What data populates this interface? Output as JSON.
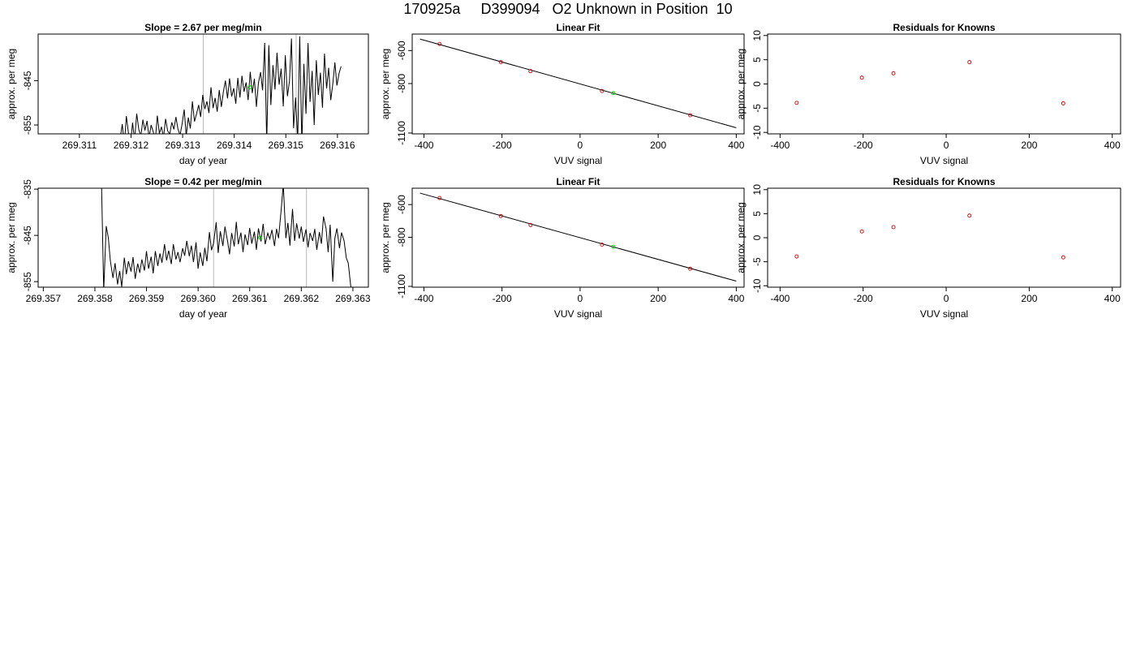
{
  "figure_title": "170925a     D399094   O2 Unknown in Position  10",
  "colors": {
    "line": "#000000",
    "known_point": "#cc0000",
    "unknown_point": "#00dd00",
    "marker_line": "#bbbbbb",
    "frame": "#000000"
  },
  "chart_data": [
    {
      "type": "line",
      "title": "Slope =  2.67  per meg/min",
      "xlabel": "day of year",
      "ylabel": "approx. per meg",
      "xlim": [
        269.3102,
        269.3166
      ],
      "ylim": [
        -857,
        -834.5
      ],
      "xticks": [
        269.311,
        269.312,
        269.313,
        269.314,
        269.315,
        269.316
      ],
      "xtick_labels": [
        "269.311",
        "269.312",
        "269.313",
        "269.314",
        "269.315",
        "269.316"
      ],
      "yticks": [
        -855,
        -845
      ],
      "ytick_labels": [
        "-855",
        "-845"
      ],
      "vertical_markers": [
        269.3134,
        269.3152
      ],
      "unknown_point": {
        "x": 269.3143,
        "y": -846.5
      },
      "series": [
        {
          "x": [
            269.31179,
            269.31183,
            269.31187,
            269.31191,
            269.31195,
            269.31199,
            269.31203,
            269.31207,
            269.31211,
            269.31215,
            269.31219,
            269.31223,
            269.31227,
            269.31231,
            269.31235,
            269.31239,
            269.31243,
            269.31247,
            269.31251,
            269.31255,
            269.31259,
            269.31263,
            269.31267,
            269.31271,
            269.31275,
            269.31279,
            269.31283,
            269.31287,
            269.31291,
            269.31295,
            269.31299,
            269.31303,
            269.31307,
            269.31311,
            269.31315,
            269.31319,
            269.31323,
            269.31327,
            269.31331,
            269.31335,
            269.31339,
            269.31343,
            269.31347,
            269.31351,
            269.31355,
            269.31359,
            269.31363,
            269.31367,
            269.31371,
            269.31375,
            269.31379,
            269.31383,
            269.31387,
            269.31391,
            269.31395,
            269.31399,
            269.31403,
            269.31407,
            269.31411,
            269.31415,
            269.31419,
            269.31423,
            269.31427,
            269.31431,
            269.31435,
            269.31439,
            269.31443,
            269.31447,
            269.31451,
            269.31455,
            269.31459,
            269.31463,
            269.31467,
            269.31471,
            269.31475,
            269.31479,
            269.31483,
            269.31487,
            269.31491,
            269.31495,
            269.31499,
            269.31503,
            269.31507,
            269.31511,
            269.31515,
            269.31519,
            269.31523,
            269.31527,
            269.31531,
            269.31535,
            269.31539,
            269.31543,
            269.31547,
            269.31551,
            269.31555,
            269.31559,
            269.31563,
            269.31567,
            269.31571,
            269.31575,
            269.31579,
            269.31583,
            269.31587,
            269.31591,
            269.31595,
            269.31599,
            269.31603,
            269.31607
          ],
          "y": [
            -858.0,
            -854.8,
            -859.5,
            -853.0,
            -856.8,
            -859.2,
            -854.5,
            -858.5,
            -852.4,
            -856.0,
            -857.5,
            -853.8,
            -856.2,
            -854.1,
            -857.8,
            -855.0,
            -856.5,
            -858.4,
            -852.9,
            -856.9,
            -855.4,
            -857.8,
            -853.6,
            -856.3,
            -857.1,
            -854.4,
            -856.0,
            -853.2,
            -855.9,
            -857.3,
            -854.8,
            -851.5,
            -857.4,
            -853.3,
            -855.8,
            -849.7,
            -854.2,
            -852.5,
            -850.5,
            -853.2,
            -848.2,
            -851.4,
            -849.7,
            -852.3,
            -846.5,
            -851.2,
            -848.9,
            -852.0,
            -847.1,
            -850.9,
            -847.5,
            -845.0,
            -849.0,
            -844.5,
            -848.6,
            -846.7,
            -850.2,
            -844.4,
            -848.8,
            -843.9,
            -847.5,
            -845.4,
            -849.4,
            -843.0,
            -847.8,
            -844.6,
            -850.9,
            -845.5,
            -843.1,
            -847.2,
            -836.5,
            -859.0,
            -837.0,
            -850.5,
            -841.5,
            -847.0,
            -838.7,
            -845.9,
            -842.3,
            -850.8,
            -839.3,
            -848.5,
            -845.2,
            -835.5,
            -855.7,
            -848.8,
            -858.5,
            -835.0,
            -859.5,
            -841.2,
            -852.5,
            -836.5,
            -849.8,
            -842.8,
            -855.0,
            -840.4,
            -848.2,
            -843.2,
            -851.1,
            -838.9,
            -846.8,
            -842.1,
            -849.4,
            -845.8,
            -840.9,
            -846.1,
            -843.4,
            -841.8
          ]
        }
      ]
    },
    {
      "type": "scatter",
      "title": "Linear Fit",
      "xlabel": "VUV signal",
      "ylabel": "approx. per meg",
      "xlim": [
        -430,
        420
      ],
      "ylim": [
        -1105,
        -500
      ],
      "xticks": [
        -400,
        -200,
        0,
        200,
        400
      ],
      "xtick_labels": [
        "-400",
        "-200",
        "0",
        "200",
        "400"
      ],
      "yticks": [
        -1100,
        -800,
        -600
      ],
      "ytick_labels": [
        "-1100",
        "-800",
        "-600"
      ],
      "fit_line": {
        "x": [
          -410,
          400
        ],
        "y": [
          -530,
          -1068
        ]
      },
      "known_points": {
        "x": [
          -360,
          -203,
          -127,
          56,
          282
        ],
        "y": [
          -560,
          -670,
          -725,
          -845,
          -992
        ]
      },
      "unknown_point": {
        "x": 85,
        "y": -858
      }
    },
    {
      "type": "scatter",
      "title": "Residuals for Knowns",
      "xlabel": "VUV signal",
      "ylabel": "approx. per meg",
      "xlim": [
        -430,
        420
      ],
      "ylim": [
        -10.3,
        10.3
      ],
      "xticks": [
        -400,
        -200,
        0,
        200,
        400
      ],
      "xtick_labels": [
        "-400",
        "-200",
        "0",
        "200",
        "400"
      ],
      "yticks": [
        -10,
        -5,
        0,
        5,
        10
      ],
      "ytick_labels": [
        "-10",
        "-5",
        "0",
        "5",
        "10"
      ],
      "points": {
        "x": [
          -360,
          -203,
          -127,
          56,
          282
        ],
        "y": [
          -3.9,
          1.3,
          2.2,
          4.5,
          -4.0
        ]
      }
    },
    {
      "type": "line",
      "title": "Slope =  0.42  per meg/min",
      "xlabel": "day of year",
      "ylabel": "approx. per meg",
      "xlim": [
        269.3569,
        269.3633
      ],
      "ylim": [
        -856.2,
        -834.8
      ],
      "xticks": [
        269.357,
        269.358,
        269.359,
        269.36,
        269.361,
        269.362,
        269.363
      ],
      "xtick_labels": [
        "269.357",
        "269.358",
        "269.359",
        "269.360",
        "269.361",
        "269.362",
        "269.363"
      ],
      "yticks": [
        -855,
        -845,
        -835
      ],
      "ytick_labels": [
        "-855",
        "-845",
        "-835"
      ],
      "vertical_markers": [
        269.3603,
        269.3621
      ],
      "unknown_point": {
        "x": 269.3612,
        "y": -845.5
      },
      "series": [
        {
          "x": [
            269.35813,
            269.35817,
            269.35822,
            269.35826,
            269.3583,
            269.35835,
            269.35839,
            269.35844,
            269.35848,
            269.35852,
            269.35857,
            269.35861,
            269.35865,
            269.3587,
            269.35874,
            269.35878,
            269.35883,
            269.35887,
            269.35891,
            269.35896,
            269.359,
            269.35904,
            269.35909,
            269.35913,
            269.35917,
            269.35922,
            269.35926,
            269.3593,
            269.35935,
            269.35939,
            269.35943,
            269.35948,
            269.35952,
            269.35957,
            269.35961,
            269.35965,
            269.3597,
            269.35974,
            269.35978,
            269.35983,
            269.35987,
            269.35991,
            269.35996,
            269.36,
            269.36004,
            269.36009,
            269.36013,
            269.36017,
            269.36022,
            269.36026,
            269.3603,
            269.36035,
            269.36039,
            269.36043,
            269.36048,
            269.36052,
            269.36057,
            269.36061,
            269.36065,
            269.3607,
            269.36074,
            269.36078,
            269.36083,
            269.36087,
            269.36091,
            269.36096,
            269.361,
            269.36104,
            269.36109,
            269.36113,
            269.36117,
            269.36122,
            269.36126,
            269.3613,
            269.36135,
            269.36139,
            269.36143,
            269.36148,
            269.36152,
            269.36156,
            269.36161,
            269.36165,
            269.3617,
            269.36174,
            269.36178,
            269.36183,
            269.36187,
            269.36191,
            269.36196,
            269.362,
            269.36204,
            269.36209,
            269.36213,
            269.36217,
            269.36222,
            269.36226,
            269.3623,
            269.36235,
            269.36239,
            269.36243,
            269.36248,
            269.36252,
            269.36256,
            269.36261,
            269.36265,
            269.36269,
            269.36274,
            269.36278,
            269.36283,
            269.36287,
            269.36291,
            269.36296
          ],
          "y": [
            -834.5,
            -857.0,
            -843.0,
            -845.5,
            -850.5,
            -854.2,
            -851.0,
            -855.6,
            -852.7,
            -856.1,
            -849.8,
            -853.4,
            -850.6,
            -852.8,
            -849.7,
            -854.4,
            -851.1,
            -853.1,
            -850.2,
            -852.6,
            -848.4,
            -852.2,
            -849.6,
            -853.2,
            -848.4,
            -851.6,
            -848.9,
            -850.9,
            -846.9,
            -850.4,
            -848.3,
            -851.2,
            -846.9,
            -850.2,
            -848.6,
            -850.8,
            -847.8,
            -849.4,
            -846.2,
            -849.5,
            -847.2,
            -850.8,
            -846.5,
            -852.2,
            -848.7,
            -851.6,
            -847.7,
            -850.6,
            -844.3,
            -848.2,
            -846.7,
            -842.2,
            -848.8,
            -844.1,
            -847.3,
            -843.1,
            -846.2,
            -849.1,
            -844.5,
            -847.4,
            -842.1,
            -846.9,
            -844.4,
            -848.6,
            -844.8,
            -847.1,
            -843.4,
            -846.8,
            -844.2,
            -848.1,
            -843.5,
            -846.3,
            -842.5,
            -846.9,
            -844.5,
            -845.8,
            -843.8,
            -847.3,
            -843.6,
            -845.6,
            -839.5,
            -834.0,
            -845.6,
            -842.3,
            -847.2,
            -839.3,
            -846.2,
            -842.4,
            -845.7,
            -843.1,
            -846.4,
            -843.7,
            -847.6,
            -844.5,
            -846.2,
            -843.6,
            -848.1,
            -844.3,
            -846.8,
            -840.9,
            -843.6,
            -848.6,
            -842.7,
            -855.0,
            -845.6,
            -843.5,
            -847.8,
            -844.4,
            -846.2,
            -849.8,
            -851.0,
            -856.2
          ]
        }
      ]
    },
    {
      "type": "scatter",
      "title": "Linear Fit",
      "xlabel": "VUV signal",
      "ylabel": "approx. per meg",
      "xlim": [
        -430,
        420
      ],
      "ylim": [
        -1105,
        -500
      ],
      "xticks": [
        -400,
        -200,
        0,
        200,
        400
      ],
      "xtick_labels": [
        "-400",
        "-200",
        "0",
        "200",
        "400"
      ],
      "yticks": [
        -1100,
        -800,
        -600
      ],
      "ytick_labels": [
        "-1100",
        "-800",
        "-600"
      ],
      "fit_line": {
        "x": [
          -410,
          400
        ],
        "y": [
          -530,
          -1068
        ]
      },
      "known_points": {
        "x": [
          -360,
          -203,
          -127,
          56,
          282
        ],
        "y": [
          -560,
          -670,
          -725,
          -845,
          -992
        ]
      },
      "unknown_point": {
        "x": 85,
        "y": -858
      }
    },
    {
      "type": "scatter",
      "title": "Residuals for Knowns",
      "xlabel": "VUV signal",
      "ylabel": "approx. per meg",
      "xlim": [
        -430,
        420
      ],
      "ylim": [
        -10.3,
        10.3
      ],
      "xticks": [
        -400,
        -200,
        0,
        200,
        400
      ],
      "xtick_labels": [
        "-400",
        "-200",
        "0",
        "200",
        "400"
      ],
      "yticks": [
        -10,
        -5,
        0,
        5,
        10
      ],
      "ytick_labels": [
        "-10",
        "-5",
        "0",
        "5",
        "10"
      ],
      "points": {
        "x": [
          -360,
          -203,
          -127,
          56,
          282
        ],
        "y": [
          -3.9,
          1.3,
          2.2,
          4.6,
          -4.1
        ]
      }
    }
  ]
}
